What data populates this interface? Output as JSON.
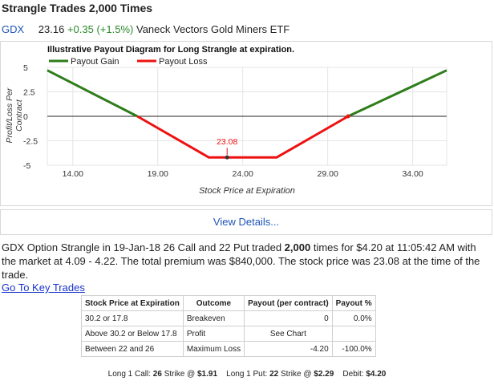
{
  "header": {
    "title": "Strangle Trades 2,000 Times"
  },
  "quote": {
    "symbol": "GDX",
    "price": "23.16",
    "change": "+0.35 (+1.5%)",
    "name": "Vaneck Vectors Gold Miners ETF"
  },
  "chart_data": {
    "type": "line",
    "title": "Illustrative Payout Diagram for Long Strangle at expiration.",
    "xlabel": "Stock Price at Expiration",
    "ylabel": "Profit/Loss Per Contract",
    "xlim": [
      12.5,
      36
    ],
    "ylim": [
      -5,
      5
    ],
    "x_ticks": [
      "14.00",
      "19.00",
      "24.00",
      "29.00",
      "34.00"
    ],
    "x_tick_values": [
      14,
      19,
      24,
      29,
      34
    ],
    "y_ticks": [
      "5",
      "2.5",
      "0",
      "-2.5",
      "-5"
    ],
    "y_tick_values": [
      5,
      2.5,
      0,
      -2.5,
      -5
    ],
    "legend_position": "top-left",
    "series": [
      {
        "name": "Payout Gain",
        "color": "#2e7d1a",
        "segments": [
          [
            [
              12.5,
              4.7
            ],
            [
              17.8,
              0
            ]
          ],
          [
            [
              30.2,
              0
            ],
            [
              36,
              4.7
            ]
          ]
        ]
      },
      {
        "name": "Payout Loss",
        "color": "#ee1111",
        "segments": [
          [
            [
              17.8,
              0
            ],
            [
              22,
              -4.2
            ],
            [
              26,
              -4.2
            ],
            [
              30.2,
              0
            ]
          ]
        ]
      }
    ],
    "markers": [
      {
        "x": 23.08,
        "y": -4.2,
        "label": "23.08"
      },
      {
        "x": 30.2,
        "y": 0,
        "label": ""
      }
    ]
  },
  "details_link": "View Details...",
  "description": {
    "part1": "GDX Option Strangle in 19-Jan-18 26 Call and 22 Put traded ",
    "count": "2,000",
    "part2": " times for $4.20 at 11:05:42 AM with the market at 4.09 - 4.22. The total premium was $840,000. The stock price was 23.08 at the time of the trade."
  },
  "key_trades_link": "Go To Key Trades",
  "table": {
    "headers": [
      "Stock Price at Expiration",
      "Outcome",
      "Payout (per contract)",
      "Payout %"
    ],
    "rows": [
      [
        "30.2 or 17.8",
        "Breakeven",
        "0",
        "0.0%"
      ],
      [
        "Above 30.2 or Below 17.8",
        "Profit",
        "See Chart",
        ""
      ],
      [
        "Between 22 and 26",
        "Maximum Loss",
        "-4.20",
        "-100.0%"
      ]
    ]
  },
  "summary": {
    "call_label": "Long 1 Call: ",
    "call_strike": "26",
    "strike_word1": " Strike @ ",
    "call_price": "$1.91",
    "put_label": "Long 1 Put: ",
    "put_strike": "22",
    "strike_word2": " Strike @ ",
    "put_price": "$2.29",
    "debit_label": "Debit: ",
    "debit": "$4.20"
  }
}
